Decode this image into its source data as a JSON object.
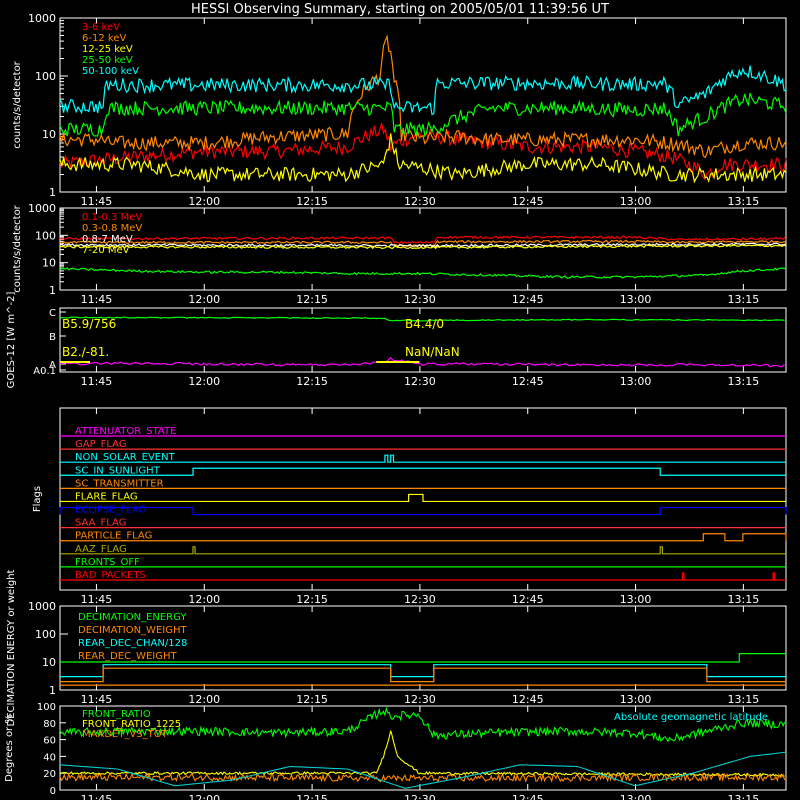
{
  "title": "HESSI Observing Summary, starting on 2005/05/01 11:39:56 UT",
  "time_ticks": [
    "11:45",
    "12:00",
    "12:15",
    "12:30",
    "12:45",
    "13:00",
    "13:15"
  ],
  "chart_data": [
    {
      "type": "line",
      "panel": "count-rates-low",
      "ylabel": "counts/s/detector",
      "scale": "log",
      "ylim": [
        1,
        1000
      ],
      "yticks": [
        "1",
        "10",
        "100",
        "1000"
      ],
      "x_units": "minutes after 11:39:56 UT",
      "xlim": [
        0,
        101
      ],
      "series": [
        {
          "name": "3-6 keV",
          "color": "#ff0000",
          "x": [
            0,
            10,
            20,
            30,
            40,
            45,
            46,
            50,
            55,
            60,
            65,
            75,
            80,
            85,
            90,
            92,
            95,
            101
          ],
          "y": [
            3,
            4,
            5,
            5,
            6,
            12,
            6,
            10,
            8,
            7,
            6,
            6,
            5,
            4,
            2,
            3,
            3,
            3
          ]
        },
        {
          "name": "6-12 keV",
          "color": "#ff8800",
          "x": [
            0,
            6,
            6.5,
            20,
            30,
            40,
            44.5,
            45.5,
            46.5,
            47.5,
            50,
            55,
            60,
            70,
            80,
            85,
            90,
            95,
            101
          ],
          "y": [
            8,
            8,
            7,
            7,
            9,
            10,
            100,
            400,
            80,
            10,
            8,
            9,
            8,
            8,
            8,
            7,
            5,
            7,
            7
          ]
        },
        {
          "name": "12-25 keV",
          "color": "#ffff00",
          "x": [
            0,
            10,
            20,
            30,
            40,
            45,
            46,
            47,
            55,
            65,
            75,
            85,
            95,
            101
          ],
          "y": [
            3,
            3,
            2,
            2,
            2,
            3,
            8,
            3,
            2,
            3,
            3,
            2,
            2,
            2
          ]
        },
        {
          "name": "25-50 keV",
          "color": "#00ff00",
          "x": [
            0,
            6,
            6.5,
            46,
            46.5,
            52,
            60,
            70,
            80,
            84,
            86,
            90,
            95,
            101
          ],
          "y": [
            12,
            12,
            28,
            28,
            12,
            12,
            28,
            28,
            26,
            28,
            12,
            20,
            40,
            30
          ]
        },
        {
          "name": "50-100 keV",
          "color": "#00ffff",
          "x": [
            0,
            6,
            6.5,
            46,
            46.5,
            52,
            52.5,
            70,
            80,
            84,
            86,
            90,
            95,
            101
          ],
          "y": [
            30,
            30,
            70,
            70,
            28,
            28,
            75,
            75,
            72,
            75,
            30,
            50,
            130,
            70
          ]
        }
      ]
    },
    {
      "type": "line",
      "panel": "count-rates-high",
      "ylabel": "counts/s/detector",
      "scale": "log",
      "ylim": [
        1,
        1000
      ],
      "yticks": [
        "1",
        "10",
        "100",
        "1000"
      ],
      "x_units": "minutes after 11:39:56 UT",
      "xlim": [
        0,
        101
      ],
      "series": [
        {
          "name": "0.1-0.3 MeV",
          "color": "#ff0000",
          "x": [
            0,
            46,
            46.5,
            52,
            52.5,
            70,
            80,
            86,
            101
          ],
          "y": [
            75,
            80,
            55,
            55,
            85,
            85,
            85,
            70,
            75
          ]
        },
        {
          "name": "0.3-0.8 MeV",
          "color": "#ff8800",
          "x": [
            0,
            46,
            46.5,
            52,
            52.5,
            80,
            86,
            101
          ],
          "y": [
            55,
            55,
            42,
            42,
            58,
            60,
            55,
            60
          ]
        },
        {
          "name": "0.8-7 MeV",
          "color": "#ffffff",
          "x": [
            0,
            46,
            52,
            80,
            101
          ],
          "y": [
            45,
            42,
            42,
            46,
            48
          ]
        },
        {
          "name": "7-20 MeV",
          "color": "#ffff00",
          "x": [
            0,
            46,
            52,
            80,
            101
          ],
          "y": [
            38,
            36,
            36,
            40,
            42
          ]
        },
        {
          "name": "",
          "color": "#00ff00",
          "x": [
            0,
            10,
            20,
            30,
            40,
            50,
            60,
            70,
            80,
            90,
            95,
            101
          ],
          "y": [
            6,
            5,
            4.5,
            4.5,
            4,
            4,
            3.5,
            3,
            3,
            3.5,
            5,
            6
          ]
        }
      ]
    },
    {
      "type": "line",
      "panel": "goes",
      "ylabel": "GOES-12 [W m^-2]",
      "yticks": [
        "A0.1",
        "A",
        "B",
        "C"
      ],
      "annotations": [
        "B5.9/756",
        "B4.4/0",
        "B2./-81.",
        "NaN/NaN"
      ],
      "x_units": "minutes after 11:39:56 UT",
      "xlim": [
        0,
        101
      ],
      "series": [
        {
          "name": "",
          "color": "#00ff00",
          "x": [
            0,
            15,
            30,
            45,
            46,
            60,
            75,
            90,
            101
          ],
          "y_class": [
            "B5.9",
            "B5.8",
            "B5.7",
            "B5.5",
            "B4.4",
            "B4.6",
            "B4.8",
            "B4.6",
            "B4.5"
          ]
        },
        {
          "name": "",
          "color": "#ff00ff",
          "x": [
            0,
            10,
            20,
            30,
            40,
            45,
            46,
            50,
            60,
            70,
            80,
            90,
            101
          ],
          "y_class": [
            "A1.0",
            "A1.1",
            "A1.0",
            "A0.9",
            "A0.9",
            "A1.3",
            "A1.9",
            "A1.0",
            "A1.0",
            "A0.9",
            "A0.9",
            "A0.9",
            "A0.8"
          ]
        }
      ]
    },
    {
      "type": "line",
      "panel": "flags",
      "ylabel": "Flags",
      "x_units": "minutes after 11:39:56 UT",
      "xlim": [
        0,
        101
      ],
      "flags": [
        {
          "name": "ATTENUATOR_STATE",
          "color": "#ff00ff",
          "on_intervals": []
        },
        {
          "name": "GAP_FLAG",
          "color": "#ff3030",
          "on_intervals": []
        },
        {
          "name": "NON_SOLAR_EVENT",
          "color": "#00ffff",
          "on_intervals": [
            [
              45.2,
              45.6
            ],
            [
              46.0,
              46.4
            ]
          ]
        },
        {
          "name": "SC_IN_SUNLIGHT",
          "color": "#00ffff",
          "on_intervals": [
            [
              18.5,
              83.5
            ]
          ]
        },
        {
          "name": "SC_TRANSMITTER",
          "color": "#ff8800",
          "on_intervals": []
        },
        {
          "name": "FLARE_FLAG",
          "color": "#ffff00",
          "on_intervals": [
            [
              48.5,
              50.5
            ]
          ]
        },
        {
          "name": "ECLIPSE_FLAG",
          "color": "#0000ff",
          "on_intervals": [
            [
              0,
              18.5
            ],
            [
              83.5,
              101
            ]
          ]
        },
        {
          "name": "SAA_FLAG",
          "color": "#ff3030",
          "on_intervals": []
        },
        {
          "name": "PARTICLE_FLAG",
          "color": "#ff8800",
          "on_intervals": [
            [
              89.5,
              92.5
            ],
            [
              95,
              101
            ]
          ]
        },
        {
          "name": "AAZ_FLAG",
          "color": "#aaaa00",
          "on_intervals": [
            [
              18.5,
              18.8
            ],
            [
              83.5,
              83.8
            ]
          ]
        },
        {
          "name": "FRONTS_OFF",
          "color": "#00ff00",
          "on_intervals": []
        },
        {
          "name": "BAD_PACKETS",
          "color": "#ff0000",
          "on_intervals": [
            [
              86.6,
              86.8
            ],
            [
              99.2,
              99.4
            ]
          ]
        }
      ]
    },
    {
      "type": "line",
      "panel": "decimation",
      "ylabel": "DECIMATION ENERGY or weight",
      "scale": "log",
      "ylim": [
        1,
        1000
      ],
      "yticks": [
        "1",
        "10",
        "100",
        "1000"
      ],
      "x_units": "minutes after 11:39:56 UT",
      "xlim": [
        0,
        101
      ],
      "series": [
        {
          "name": "DECIMATION_ENERGY",
          "color": "#00ff00",
          "x": [
            0,
            94.5,
            94.5,
            101
          ],
          "y": [
            10,
            10,
            20,
            20
          ]
        },
        {
          "name": "DECIMATION_WEIGHT",
          "color": "#ff8800",
          "x": [
            0,
            101
          ],
          "y": [
            1.5,
            1.5
          ]
        },
        {
          "name": "REAR_DEC_CHAN/128",
          "color": "#00ffff",
          "x": [
            0,
            6,
            6,
            46,
            46,
            52,
            52,
            90,
            90,
            101
          ],
          "y": [
            3,
            3,
            8,
            8,
            3,
            3,
            8,
            8,
            3,
            3
          ]
        },
        {
          "name": "REAR_DEC_WEIGHT",
          "color": "#ff8800",
          "x": [
            0,
            6,
            6,
            46,
            46,
            52,
            52,
            90,
            90,
            101
          ],
          "y": [
            2,
            2,
            6,
            6,
            2,
            2,
            6,
            6,
            2,
            2
          ]
        }
      ]
    },
    {
      "type": "line",
      "panel": "ratios",
      "ylabel": "Degrees or %",
      "ylim": [
        0,
        100
      ],
      "yticks": [
        "0",
        "20",
        "40",
        "60",
        "80",
        "100"
      ],
      "annotations": [
        "Absolute geomagnetic latitude"
      ],
      "x_units": "minutes after 11:39:56 UT",
      "xlim": [
        0,
        101
      ],
      "series": [
        {
          "name": "FRONT_RATIO",
          "color": "#00ff00",
          "x": [
            0,
            10,
            20,
            30,
            40,
            45,
            46,
            50,
            52,
            60,
            70,
            80,
            85,
            90,
            95,
            101
          ],
          "y": [
            68,
            70,
            70,
            68,
            70,
            95,
            88,
            90,
            65,
            68,
            70,
            68,
            60,
            70,
            80,
            78
          ]
        },
        {
          "name": "FRONT_RATIO_1225",
          "color": "#ffff00",
          "x": [
            0,
            44,
            45,
            46,
            47,
            50,
            101
          ],
          "y": [
            20,
            20,
            40,
            70,
            40,
            20,
            18
          ]
        },
        {
          "name": "MAXDET_VS_TOT",
          "color": "#ff8800",
          "x": [
            0,
            20,
            40,
            60,
            80,
            101
          ],
          "y": [
            15,
            15,
            14,
            14,
            15,
            15
          ]
        },
        {
          "name": "Absolute geomagnetic latitude",
          "color": "#00cccc",
          "x": [
            0,
            8,
            16,
            24,
            32,
            40,
            48,
            56,
            64,
            72,
            80,
            88,
            96,
            101
          ],
          "y": [
            30,
            25,
            5,
            12,
            28,
            25,
            2,
            15,
            30,
            28,
            5,
            20,
            40,
            45
          ]
        }
      ]
    }
  ]
}
